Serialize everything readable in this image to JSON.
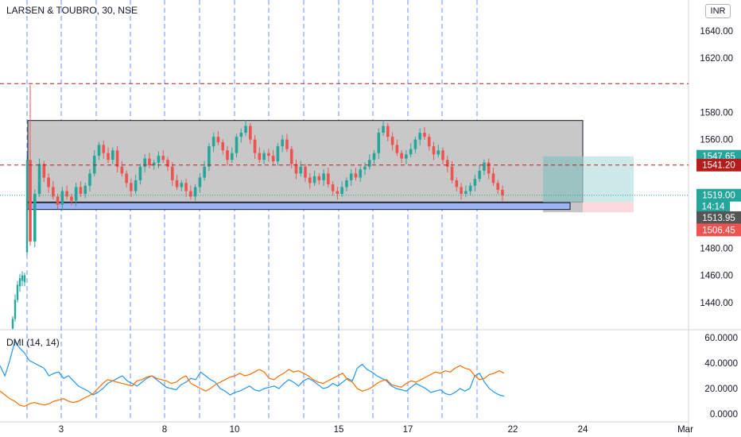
{
  "header": {
    "title": "LARSEN & TOUBRO, 30, NSE",
    "currency": "INR"
  },
  "indicator": {
    "title": "DMI (14, 14)"
  },
  "chart_data": [
    {
      "type": "candlestick",
      "title": "LARSEN & TOUBRO, 30, NSE",
      "ylim": [
        1420,
        1660
      ],
      "y_ticks": [
        1440,
        1460,
        1480,
        1500,
        1520,
        1540,
        1560,
        1580,
        1620,
        1640
      ],
      "y_tick_labels": [
        "1440.00",
        "1460.00",
        "1480.00",
        "1500.00",
        "1520.00",
        "1540.00",
        "1560.00",
        "1580.00",
        "1620.00",
        "1640.00"
      ],
      "x_tick_labels": [
        "3",
        "8",
        "10",
        "15",
        "17",
        "22",
        "24",
        "Mar"
      ],
      "horizontal_lines": [
        {
          "value": 1601.15,
          "label": "1601.15",
          "color": "#b71c1c",
          "style": "dashed"
        },
        {
          "value": 1541.2,
          "label": "1541.20",
          "color": "#b71c1c",
          "style": "dashed"
        },
        {
          "value": 1519.0,
          "label": "1519.00",
          "color": "#26a69a",
          "style": "dotted"
        }
      ],
      "price_labels": [
        {
          "label": "1547.65",
          "value": 1547.65,
          "color": "#26a69a"
        },
        {
          "label": "1541.20",
          "value": 1541.2,
          "color": "#b71c1c"
        },
        {
          "label": "1519.00",
          "value": 1519.0,
          "color": "#26a69a"
        },
        {
          "label": "14:14",
          "value": 1511.0,
          "color": "#26a69a"
        },
        {
          "label": "1513.95",
          "value": 1502.5,
          "color": "#555555"
        },
        {
          "label": "1506.45",
          "value": 1493.5,
          "color": "#ef5350"
        }
      ],
      "range_box": {
        "top": 1574,
        "bottom": 1514
      },
      "support_bar": {
        "top": 1513.5,
        "bottom": 1508.5
      },
      "position": {
        "entry": 1513.95,
        "target": 1547.65,
        "stop": 1506.45
      },
      "closes": [
        1485,
        1520,
        1542,
        1532,
        1525,
        1518,
        1512,
        1522,
        1518,
        1515,
        1525,
        1520,
        1526,
        1535,
        1548,
        1556,
        1550,
        1545,
        1552,
        1540,
        1535,
        1528,
        1522,
        1530,
        1540,
        1546,
        1541,
        1543,
        1548,
        1545,
        1540,
        1530,
        1525,
        1528,
        1522,
        1518,
        1525,
        1532,
        1540,
        1555,
        1562,
        1558,
        1552,
        1545,
        1550,
        1562,
        1565,
        1570,
        1560,
        1550,
        1545,
        1550,
        1548,
        1544,
        1555,
        1560,
        1553,
        1542,
        1535,
        1540,
        1532,
        1528,
        1533,
        1530,
        1535,
        1527,
        1522,
        1520,
        1525,
        1530,
        1535,
        1532,
        1538,
        1540,
        1545,
        1550,
        1565,
        1570,
        1562,
        1556,
        1550,
        1546,
        1549,
        1553,
        1560,
        1565,
        1562,
        1555,
        1549,
        1552,
        1545,
        1540,
        1530,
        1525,
        1520,
        1522,
        1526,
        1531,
        1537,
        1543,
        1535,
        1528,
        1523,
        1519
      ]
    },
    {
      "type": "line",
      "title": "DMI (14, 14)",
      "ylim": [
        0,
        64
      ],
      "y_ticks": [
        0,
        20,
        40,
        60
      ],
      "y_tick_labels": [
        "0.0000",
        "20.0000",
        "40.0000",
        "60.0000"
      ],
      "series": [
        {
          "name": "+DI",
          "color": "#2196f3",
          "values": [
            38,
            30,
            42,
            57,
            52,
            48,
            42,
            40,
            38,
            36,
            30,
            32,
            33,
            28,
            30,
            26,
            22,
            20,
            18,
            15,
            17,
            20,
            24,
            26,
            28,
            30,
            26,
            24,
            22,
            25,
            28,
            30,
            27,
            24,
            21,
            20,
            19,
            23,
            25,
            28,
            27,
            33,
            30,
            27,
            25,
            20,
            18,
            15,
            17,
            18,
            20,
            22,
            19,
            18,
            20,
            21,
            22,
            20,
            24,
            27,
            25,
            22,
            26,
            28,
            26,
            23,
            20,
            21,
            24,
            22,
            25,
            28,
            26,
            36,
            39,
            35,
            33,
            30,
            28,
            26,
            22,
            20,
            19,
            18,
            21,
            24,
            22,
            20,
            17,
            18,
            19,
            16,
            15,
            17,
            20,
            18,
            20,
            30,
            32,
            25,
            20,
            17,
            15,
            14
          ]
        },
        {
          "name": "-DI",
          "color": "#ff6d00",
          "values": [
            18,
            15,
            12,
            10,
            7,
            6,
            8,
            9,
            8,
            7,
            8,
            10,
            11,
            12,
            10,
            9,
            10,
            12,
            14,
            16,
            20,
            24,
            27,
            26,
            25,
            24,
            23,
            22,
            26,
            27,
            29,
            30,
            28,
            27,
            26,
            24,
            25,
            28,
            30,
            24,
            22,
            20,
            18,
            20,
            23,
            25,
            27,
            29,
            30,
            32,
            30,
            31,
            33,
            35,
            33,
            28,
            27,
            30,
            32,
            35,
            33,
            34,
            32,
            30,
            27,
            25,
            24,
            26,
            28,
            30,
            32,
            27,
            25,
            20,
            18,
            19,
            21,
            24,
            26,
            27,
            23,
            22,
            21,
            24,
            26,
            25,
            27,
            29,
            31,
            33,
            32,
            34,
            33,
            36,
            38,
            36,
            35,
            30,
            27,
            28,
            31,
            32,
            34,
            32
          ]
        }
      ]
    }
  ]
}
